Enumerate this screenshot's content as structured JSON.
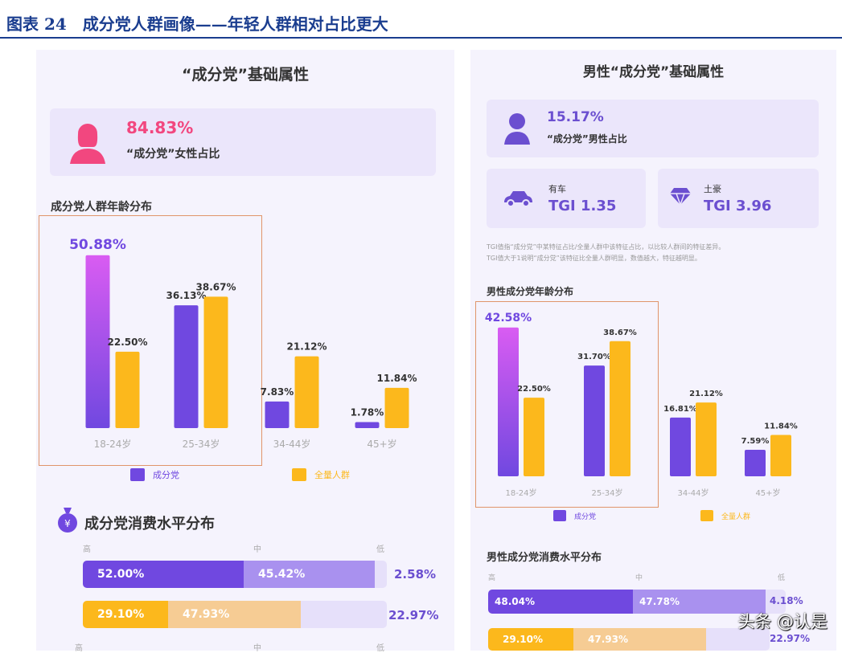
{
  "figure_title": "图表 24　成分党人群画像——年轻人群相对占比更大",
  "left": {
    "title": "“成分党”基础属性",
    "female_pct": "84.83%",
    "female_label": "“成分党”女性占比",
    "age_title": "成分党人群年龄分布",
    "consume_title": "成分党消费水平分布",
    "levels": [
      "高",
      "中",
      "低"
    ],
    "consume_rows": [
      [
        "52.00%",
        "45.42%",
        "2.58%"
      ],
      [
        "29.10%",
        "47.93%",
        "22.97%"
      ]
    ]
  },
  "right": {
    "title": "男性“成分党”基础属性",
    "male_pct": "15.17%",
    "male_label": "“成分党”男性占比",
    "car_label": "有车",
    "car_tgi": "TGI 1.35",
    "rich_label": "土豪",
    "rich_tgi": "TGI 3.96",
    "note1": "TGI值指“成分党”中某特征占比/全量人群中该特征占比，以比较人群间的特征差异。",
    "note2": "TGI值大于1说明“成分党”该特征比全量人群明显，数值越大，特征越明显。",
    "age_title": "男性成分党年龄分布",
    "consume_title": "男性成分党消费水平分布",
    "levels": [
      "高",
      "中",
      "低"
    ],
    "consume_rows": [
      [
        "48.04%",
        "47.78%",
        "4.18%"
      ],
      [
        "29.10%",
        "47.93%",
        "22.97%"
      ]
    ]
  },
  "legend": [
    "成分党",
    "全量人群"
  ],
  "colors": {
    "purple": "#7048e0",
    "purple_top": "#d95cf2",
    "orange": "#fcb81c",
    "light_purple": "#a991ef",
    "light_orange": "#f6cc94",
    "pink": "#f2477f"
  },
  "watermark": "头条 @认是",
  "chart_data": [
    {
      "type": "bar",
      "title": "成分党人群年龄分布",
      "categories": [
        "18-24岁",
        "25-34岁",
        "34-44岁",
        "45+岁"
      ],
      "series": [
        {
          "name": "成分党",
          "values": [
            50.88,
            36.13,
            7.83,
            1.78
          ],
          "labels": [
            "50.88%",
            "36.13%",
            "7.83%",
            "1.78%"
          ]
        },
        {
          "name": "全量人群",
          "values": [
            22.5,
            38.67,
            21.12,
            11.84
          ],
          "labels": [
            "22.50%",
            "38.67%",
            "21.12%",
            "11.84%"
          ]
        }
      ],
      "legend": "bottom",
      "grid": false
    },
    {
      "type": "bar",
      "title": "男性成分党年龄分布",
      "categories": [
        "18-24岁",
        "25-34岁",
        "34-44岁",
        "45+岁"
      ],
      "series": [
        {
          "name": "成分党",
          "values": [
            42.58,
            31.7,
            16.81,
            7.59
          ],
          "labels": [
            "42.58%",
            "31.70%",
            "16.81%",
            "7.59%"
          ]
        },
        {
          "name": "全量人群",
          "values": [
            22.5,
            38.67,
            21.12,
            11.84
          ],
          "labels": [
            "22.50%",
            "38.67%",
            "21.12%",
            "11.84%"
          ]
        }
      ],
      "legend": "bottom",
      "grid": false
    }
  ]
}
